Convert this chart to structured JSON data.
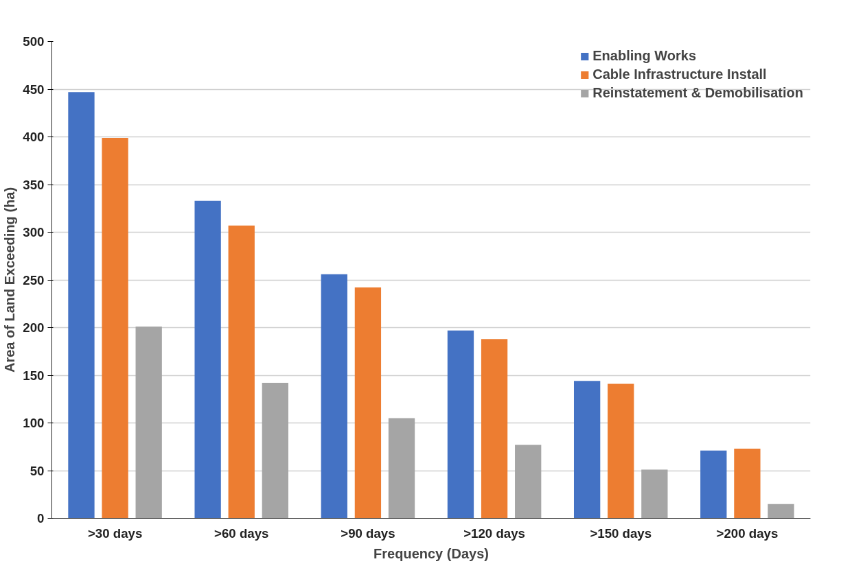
{
  "chart_data": {
    "type": "bar",
    "xlabel": "Frequency (Days)",
    "ylabel": "Area of Land Exceeding (ha)",
    "categories": [
      ">30 days",
      ">60 days",
      ">90 days",
      ">120 days",
      ">150 days",
      ">200 days"
    ],
    "series": [
      {
        "name": "Enabling Works",
        "color": "#4472c4",
        "values": [
          447,
          333,
          256,
          197,
          144,
          71
        ]
      },
      {
        "name": "Cable Infrastructure Install",
        "color": "#ed7d31",
        "values": [
          399,
          307,
          242,
          188,
          141,
          73
        ]
      },
      {
        "name": "Reinstatement & Demobilisation",
        "color": "#a5a5a5",
        "values": [
          201,
          142,
          105,
          77,
          51,
          15
        ]
      }
    ],
    "ylim": [
      0,
      500
    ],
    "yticks": [
      0,
      50,
      100,
      150,
      200,
      250,
      300,
      350,
      400,
      450,
      500
    ],
    "grid": "y",
    "legend": "top right"
  }
}
